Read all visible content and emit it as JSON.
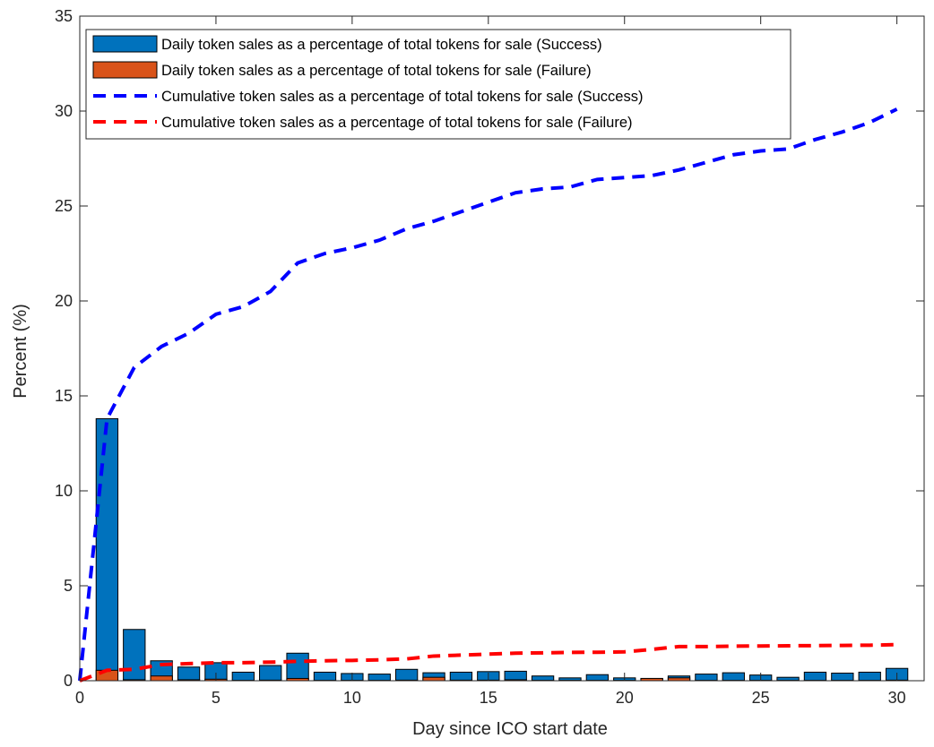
{
  "chart_data": {
    "type": "bar",
    "xlabel": "Day since ICO start date",
    "ylabel": "Percent (%)",
    "xlim": [
      0,
      31
    ],
    "ylim": [
      0,
      35
    ],
    "xticks": [
      0,
      5,
      10,
      15,
      20,
      25,
      30
    ],
    "yticks": [
      0,
      5,
      10,
      15,
      20,
      25,
      30,
      35
    ],
    "grid": false,
    "legend_position": "top-left",
    "x": [
      1,
      2,
      3,
      4,
      5,
      6,
      7,
      8,
      9,
      10,
      11,
      12,
      13,
      14,
      15,
      16,
      17,
      18,
      19,
      20,
      21,
      22,
      23,
      24,
      25,
      26,
      27,
      28,
      29,
      30
    ],
    "series": [
      {
        "name": "Daily token sales as a percentage of total tokens for sale (Success)",
        "kind": "bar",
        "color": "#0072BD",
        "values": [
          13.8,
          2.7,
          1.05,
          0.72,
          0.95,
          0.45,
          0.8,
          1.45,
          0.45,
          0.38,
          0.35,
          0.6,
          0.42,
          0.45,
          0.48,
          0.5,
          0.25,
          0.15,
          0.32,
          0.15,
          0.12,
          0.25,
          0.35,
          0.42,
          0.3,
          0.18,
          0.45,
          0.4,
          0.45,
          0.65
        ]
      },
      {
        "name": "Daily token sales as a percentage of total tokens for sale (Failure)",
        "kind": "bar",
        "color": "#D95319",
        "values": [
          0.55,
          0.05,
          0.25,
          0.05,
          0.08,
          0.02,
          0.03,
          0.12,
          0.02,
          0.02,
          0.02,
          0.03,
          0.18,
          0.03,
          0.03,
          0.05,
          0.02,
          0.02,
          0.02,
          0.02,
          0.12,
          0.15,
          0.02,
          0.02,
          0.02,
          0.02,
          0.02,
          0.02,
          0.02,
          0.03
        ]
      },
      {
        "name": "Cumulative token sales as a percentage of total tokens for sale (Success)",
        "kind": "line",
        "dash": true,
        "color": "#0000FF",
        "x": [
          0,
          1,
          2,
          3,
          4,
          5,
          6,
          7,
          8,
          9,
          10,
          11,
          12,
          13,
          14,
          15,
          16,
          17,
          18,
          19,
          20,
          21,
          22,
          23,
          24,
          25,
          26,
          27,
          28,
          29,
          30
        ],
        "values": [
          0,
          13.8,
          16.5,
          17.6,
          18.3,
          19.3,
          19.7,
          20.5,
          22.0,
          22.5,
          22.8,
          23.2,
          23.8,
          24.2,
          24.7,
          25.2,
          25.7,
          25.9,
          26.0,
          26.4,
          26.5,
          26.6,
          26.9,
          27.3,
          27.7,
          27.9,
          28.0,
          28.5,
          28.9,
          29.4,
          30.1
        ]
      },
      {
        "name": "Cumulative token sales as a percentage of total tokens for sale (Failure)",
        "kind": "line",
        "dash": true,
        "color": "#FF0000",
        "x": [
          0,
          1,
          2,
          3,
          4,
          5,
          6,
          7,
          8,
          9,
          10,
          11,
          12,
          13,
          14,
          15,
          16,
          17,
          18,
          19,
          20,
          21,
          22,
          23,
          24,
          25,
          26,
          27,
          28,
          29,
          30
        ],
        "values": [
          0,
          0.55,
          0.6,
          0.85,
          0.9,
          0.95,
          0.95,
          0.98,
          1.02,
          1.05,
          1.07,
          1.1,
          1.15,
          1.3,
          1.35,
          1.4,
          1.45,
          1.47,
          1.49,
          1.5,
          1.52,
          1.65,
          1.8,
          1.8,
          1.82,
          1.83,
          1.84,
          1.85,
          1.86,
          1.87,
          1.9
        ]
      }
    ]
  }
}
